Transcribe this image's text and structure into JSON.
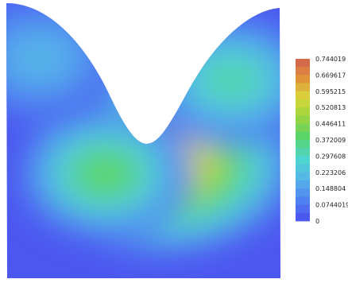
{
  "chart_data": {
    "type": "heatmap",
    "title": "",
    "colorbar": {
      "min": 0,
      "max": 0.744019,
      "tick_labels": [
        "0.744019",
        "0.669617",
        "0.595215",
        "0.520813",
        "0.446411",
        "0.372009",
        "0.297608",
        "0.223206",
        "0.148804",
        "0.0744019",
        "0"
      ],
      "band_count": 20,
      "stops": [
        {
          "t": 0.0,
          "color": "#4b4ff0"
        },
        {
          "t": 0.12,
          "color": "#4f7ff2"
        },
        {
          "t": 0.25,
          "color": "#56b2ea"
        },
        {
          "t": 0.38,
          "color": "#4fd6d0"
        },
        {
          "t": 0.52,
          "color": "#58d46a"
        },
        {
          "t": 0.64,
          "color": "#9bd43e"
        },
        {
          "t": 0.76,
          "color": "#d9d83a"
        },
        {
          "t": 0.88,
          "color": "#e0913a"
        },
        {
          "t": 1.0,
          "color": "#d2604f"
        }
      ]
    },
    "field": {
      "hotspots": [
        {
          "x": 0.56,
          "y": 0.58,
          "peak": 0.744019
        },
        {
          "x": 0.36,
          "y": 0.62,
          "peak": 0.45
        },
        {
          "x": 0.82,
          "y": 0.28,
          "peak": 0.36
        },
        {
          "x": 0.12,
          "y": 0.2,
          "peak": 0.22
        }
      ]
    }
  }
}
